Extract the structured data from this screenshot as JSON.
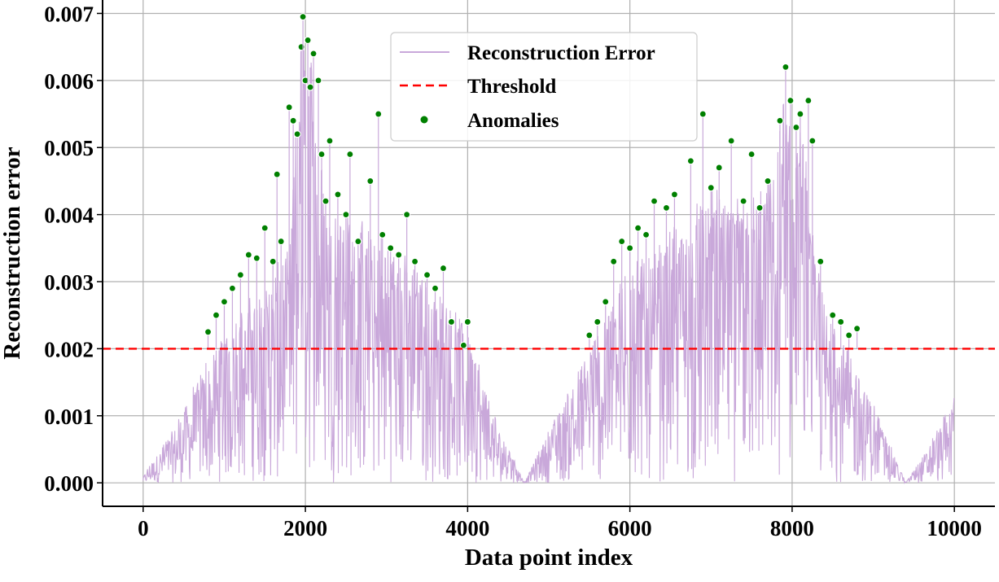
{
  "chart_data": {
    "type": "line",
    "title": "",
    "xlabel": "Data point index",
    "ylabel": "Reconstruction error",
    "xlim": [
      -500,
      10500
    ],
    "ylim": [
      -0.00035,
      0.0072
    ],
    "xticks": [
      0,
      2000,
      4000,
      6000,
      8000,
      10000
    ],
    "xtick_labels": [
      "0",
      "2000",
      "4000",
      "6000",
      "8000",
      "10000"
    ],
    "yticks": [
      0.0,
      0.001,
      0.002,
      0.003,
      0.004,
      0.005,
      0.006,
      0.007
    ],
    "ytick_labels": [
      "0.000",
      "0.001",
      "0.002",
      "0.003",
      "0.004",
      "0.005",
      "0.006",
      "0.007"
    ],
    "grid": true,
    "legend_position": "top-center",
    "series": [
      {
        "name": "Reconstruction Error",
        "kind": "line",
        "color": "#c9a8da",
        "note": "dense noisy signal over 10000 points; envelope peaks listed",
        "envelope": {
          "x": [
            0,
            400,
            800,
            1200,
            1600,
            1800,
            1950,
            2050,
            2150,
            2250,
            2600,
            3000,
            3400,
            3800,
            4000,
            4300,
            4700,
            5000,
            5500,
            6000,
            6500,
            7000,
            7500,
            7800,
            7900,
            8000,
            8150,
            8300,
            8600,
            9000,
            9400,
            9700,
            10000
          ],
          "upper": [
            0.0001,
            0.0009,
            0.0019,
            0.0026,
            0.0032,
            0.0035,
            0.0068,
            0.0065,
            0.0061,
            0.0044,
            0.004,
            0.0037,
            0.0032,
            0.0026,
            0.0024,
            0.0011,
            0.0,
            0.0008,
            0.002,
            0.0033,
            0.0038,
            0.0044,
            0.0043,
            0.0046,
            0.0061,
            0.0057,
            0.0051,
            0.0033,
            0.0023,
            0.0012,
            0.0,
            0.0006,
            0.0013
          ]
        }
      },
      {
        "name": "Threshold",
        "kind": "hline",
        "color": "#ff0000",
        "value": 0.002
      },
      {
        "name": "Anomalies",
        "kind": "scatter",
        "color": "#008000",
        "points": [
          [
            800,
            0.00225
          ],
          [
            900,
            0.0025
          ],
          [
            1000,
            0.0027
          ],
          [
            1100,
            0.0029
          ],
          [
            1200,
            0.0031
          ],
          [
            1300,
            0.0034
          ],
          [
            1400,
            0.00335
          ],
          [
            1500,
            0.0038
          ],
          [
            1600,
            0.0033
          ],
          [
            1650,
            0.0046
          ],
          [
            1700,
            0.0036
          ],
          [
            1800,
            0.0056
          ],
          [
            1850,
            0.0054
          ],
          [
            1900,
            0.0052
          ],
          [
            1950,
            0.0065
          ],
          [
            1970,
            0.00695
          ],
          [
            2000,
            0.006
          ],
          [
            2030,
            0.0066
          ],
          [
            2060,
            0.0059
          ],
          [
            2100,
            0.0064
          ],
          [
            2160,
            0.006
          ],
          [
            2200,
            0.0049
          ],
          [
            2250,
            0.0042
          ],
          [
            2300,
            0.0051
          ],
          [
            2400,
            0.0043
          ],
          [
            2500,
            0.004
          ],
          [
            2550,
            0.0049
          ],
          [
            2650,
            0.0036
          ],
          [
            2800,
            0.0045
          ],
          [
            2900,
            0.0055
          ],
          [
            2950,
            0.0037
          ],
          [
            3050,
            0.0035
          ],
          [
            3150,
            0.0034
          ],
          [
            3250,
            0.004
          ],
          [
            3350,
            0.0033
          ],
          [
            3500,
            0.0031
          ],
          [
            3600,
            0.0029
          ],
          [
            3700,
            0.0032
          ],
          [
            3800,
            0.0024
          ],
          [
            3950,
            0.00205
          ],
          [
            4000,
            0.0024
          ],
          [
            5500,
            0.0022
          ],
          [
            5600,
            0.0024
          ],
          [
            5700,
            0.0027
          ],
          [
            5800,
            0.0033
          ],
          [
            5900,
            0.0036
          ],
          [
            6000,
            0.0035
          ],
          [
            6100,
            0.0038
          ],
          [
            6200,
            0.0037
          ],
          [
            6300,
            0.0042
          ],
          [
            6450,
            0.0041
          ],
          [
            6550,
            0.0043
          ],
          [
            6750,
            0.0048
          ],
          [
            6900,
            0.0055
          ],
          [
            7000,
            0.0044
          ],
          [
            7100,
            0.0047
          ],
          [
            7250,
            0.0051
          ],
          [
            7400,
            0.0042
          ],
          [
            7500,
            0.0049
          ],
          [
            7600,
            0.0041
          ],
          [
            7700,
            0.0045
          ],
          [
            7850,
            0.0054
          ],
          [
            7920,
            0.0062
          ],
          [
            7980,
            0.0057
          ],
          [
            8050,
            0.0053
          ],
          [
            8100,
            0.0055
          ],
          [
            8200,
            0.0057
          ],
          [
            8250,
            0.0051
          ],
          [
            8350,
            0.0033
          ],
          [
            8500,
            0.0025
          ],
          [
            8600,
            0.0024
          ],
          [
            8700,
            0.0022
          ],
          [
            8800,
            0.0023
          ]
        ]
      }
    ]
  }
}
